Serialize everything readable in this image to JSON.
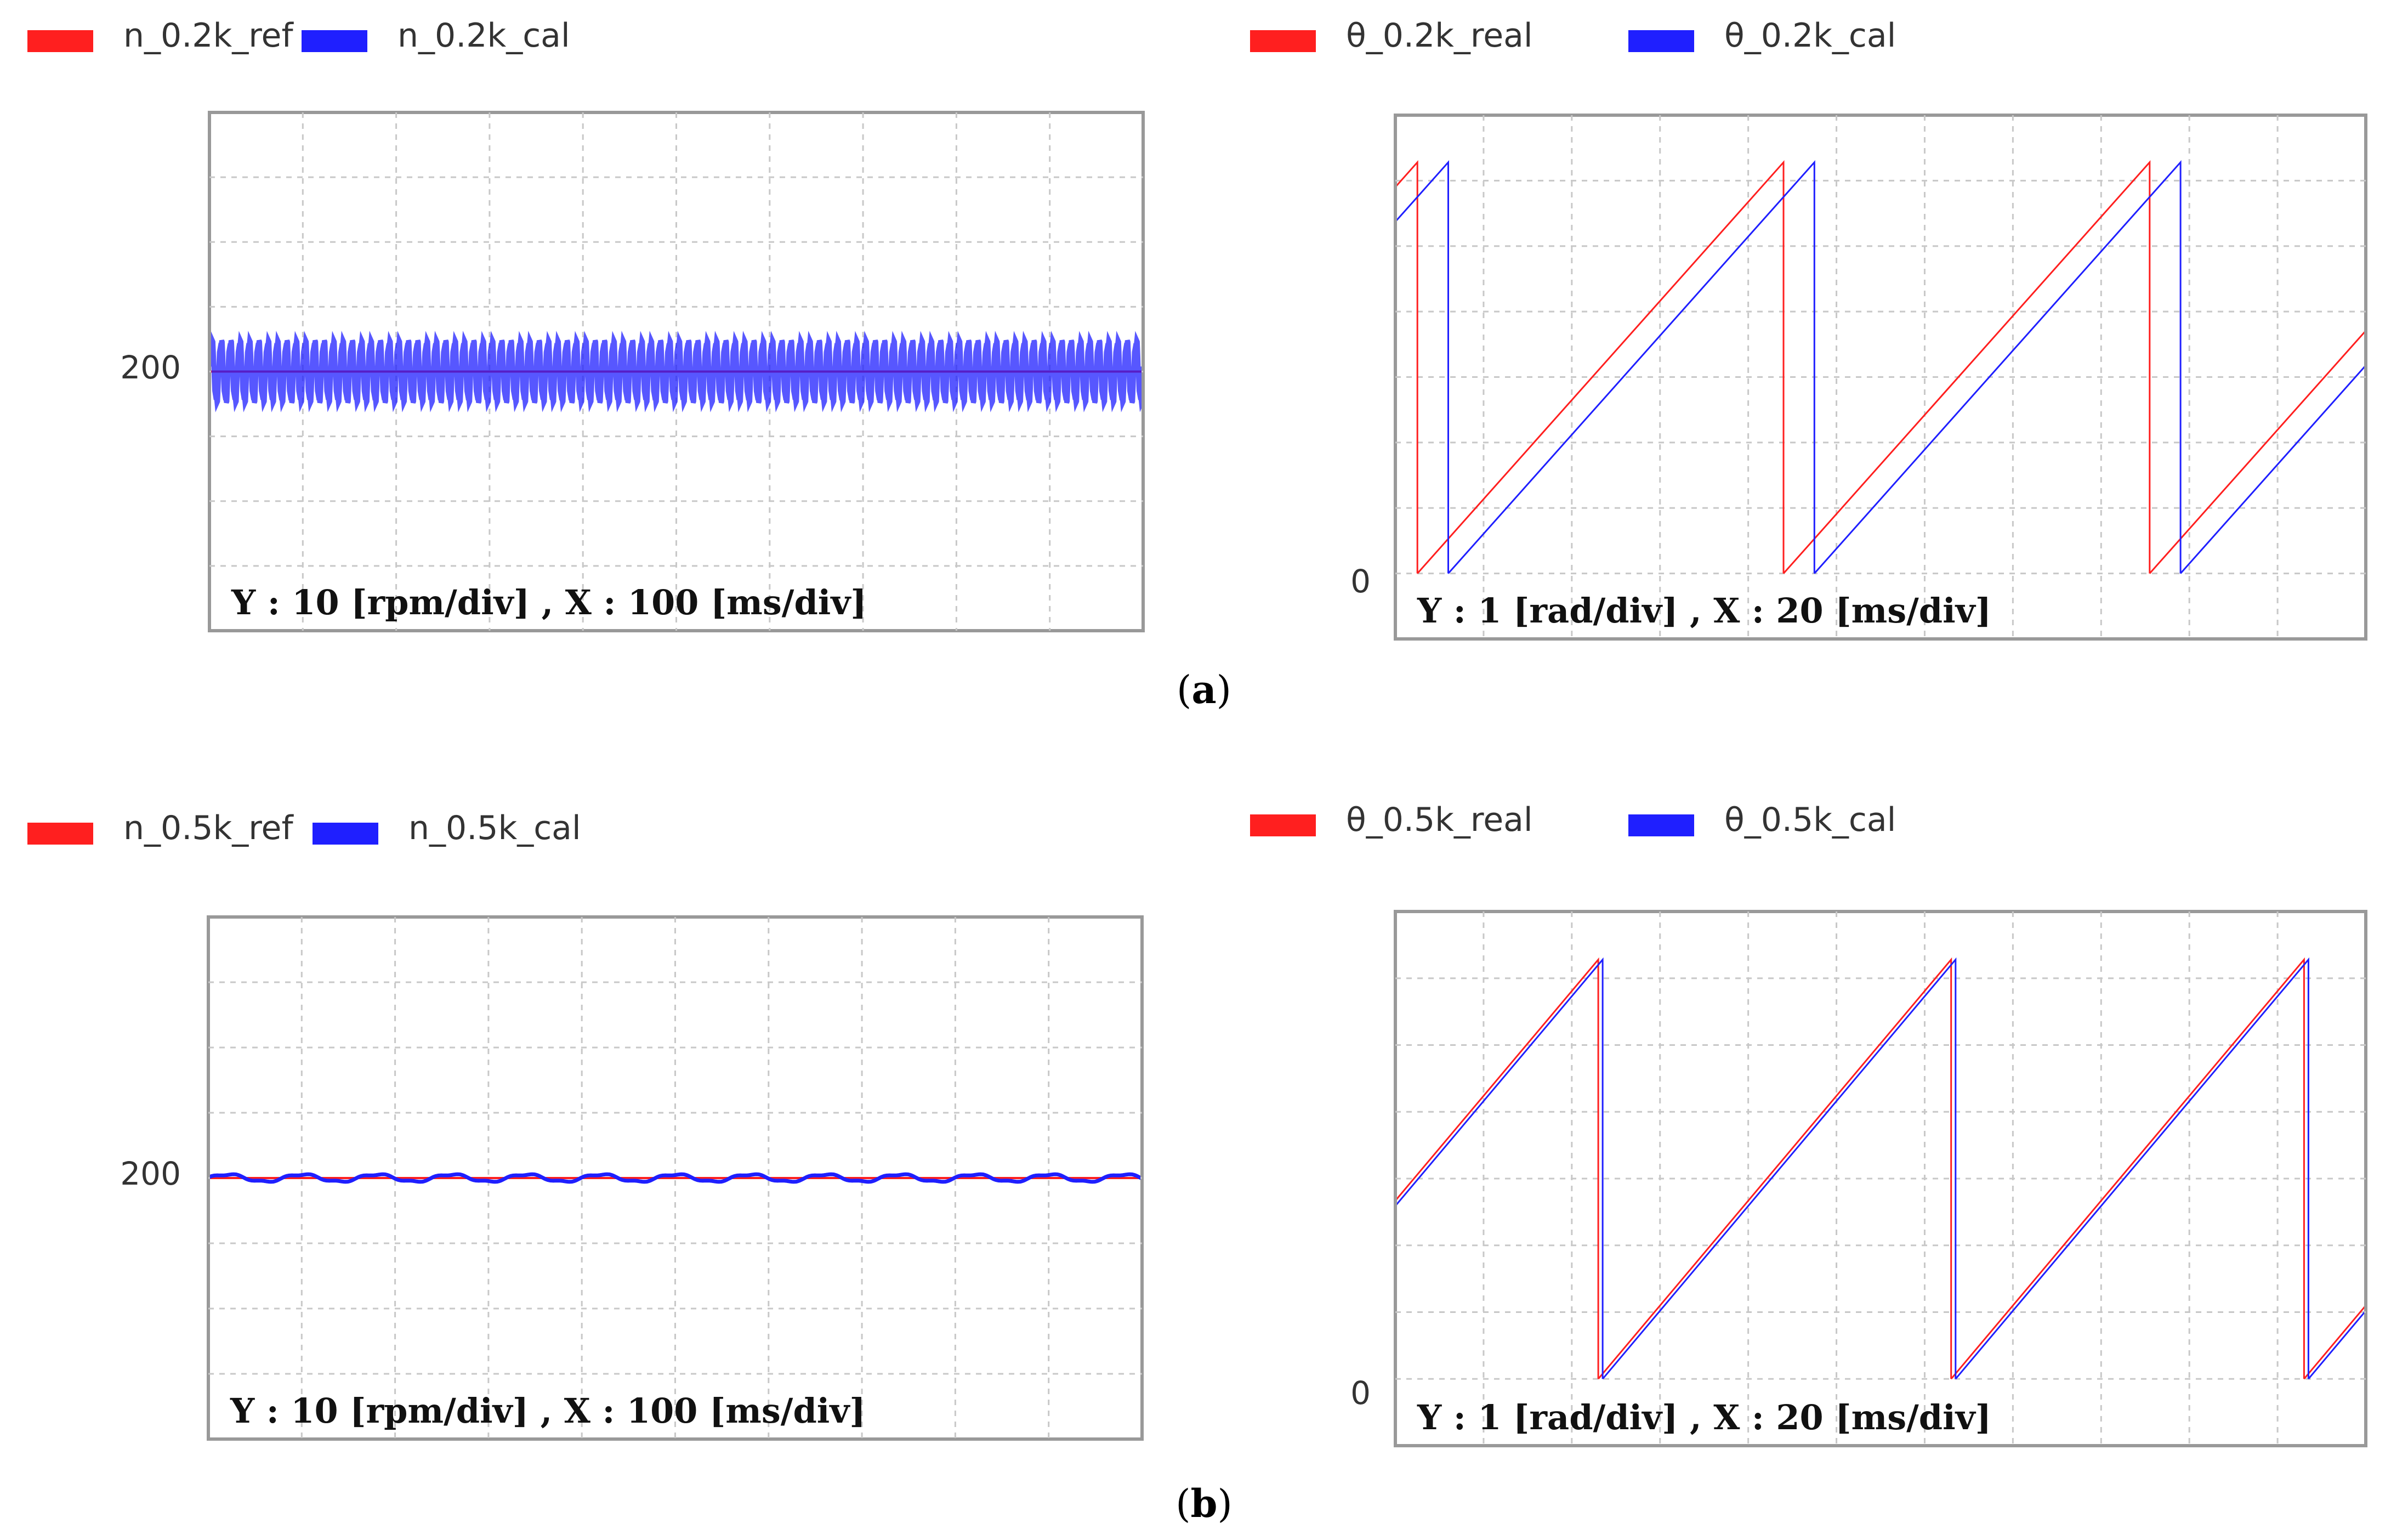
{
  "colors": {
    "ref": "#ff1f1f",
    "cal": "#1f1fff",
    "frame": "#999999",
    "grid": "#c8c8c8"
  },
  "panel_labels": [
    {
      "open": "(",
      "letter": "a",
      "close": ")"
    },
    {
      "open": "(",
      "letter": "b",
      "close": ")"
    }
  ],
  "chart_data": [
    {
      "type": "line",
      "legend": [
        "n_0.2k_ref",
        "n_0.2k_cal"
      ],
      "y_tick_label": "200",
      "scale_text": "Y :  10 [rpm/div] , X : 100 [ms/div]",
      "grid": true,
      "y_divisions": 8,
      "x_divisions": 10,
      "units": {
        "y": "rpm",
        "x": "ms"
      },
      "ylim": [
        160,
        240
      ],
      "xlim": [
        0,
        1000
      ],
      "series": [
        {
          "name": "n_0.2k_ref",
          "shape": "constant",
          "value": 200
        },
        {
          "name": "n_0.2k_cal",
          "shape": "ripple",
          "mean": 200,
          "amplitude": 6,
          "period_ms": 10
        }
      ]
    },
    {
      "type": "line",
      "legend": [
        "θ_0.2k_real",
        "θ_0.2k_cal"
      ],
      "y_tick_label": "0",
      "scale_text": "Y :  1 [rad/div] , X : 20 [ms/div]",
      "grid": true,
      "y_divisions": 8,
      "x_divisions": 11,
      "units": {
        "y": "rad",
        "x": "ms"
      },
      "ylim": [
        -1,
        7
      ],
      "xlim": [
        0,
        220
      ],
      "series": [
        {
          "name": "θ_0.2k_real",
          "shape": "sawtooth",
          "max": 6.28,
          "period_ms": 83,
          "reset_ms": [
            5,
            88,
            171
          ]
        },
        {
          "name": "θ_0.2k_cal",
          "shape": "sawtooth",
          "max": 6.28,
          "period_ms": 83,
          "reset_ms": [
            12,
            95,
            178
          ]
        }
      ]
    },
    {
      "type": "line",
      "legend": [
        "n_0.5k_ref",
        "n_0.5k_cal"
      ],
      "y_tick_label": "200",
      "scale_text": "Y :  10 [rpm/div] , X : 100 [ms/div]",
      "grid": true,
      "y_divisions": 8,
      "x_divisions": 10,
      "units": {
        "y": "rpm",
        "x": "ms"
      },
      "ylim": [
        160,
        240
      ],
      "xlim": [
        0,
        1000
      ],
      "series": [
        {
          "name": "n_0.5k_ref",
          "shape": "constant",
          "value": 200
        },
        {
          "name": "n_0.5k_cal",
          "shape": "ripple",
          "mean": 200,
          "amplitude": 0.7,
          "period_ms": 80
        }
      ]
    },
    {
      "type": "line",
      "legend": [
        "θ_0.5k_real",
        "θ_0.5k_cal"
      ],
      "y_tick_label": "0",
      "scale_text": "Y :  1 [rad/div] , X : 20 [ms/div]",
      "grid": true,
      "y_divisions": 8,
      "x_divisions": 11,
      "units": {
        "y": "rad",
        "x": "ms"
      },
      "ylim": [
        -1,
        7
      ],
      "xlim": [
        0,
        220
      ],
      "series": [
        {
          "name": "θ_0.5k_real",
          "shape": "sawtooth",
          "max": 6.28,
          "period_ms": 80,
          "reset_ms": [
            46,
            126,
            206
          ]
        },
        {
          "name": "θ_0.5k_cal",
          "shape": "sawtooth",
          "max": 6.28,
          "period_ms": 80,
          "reset_ms": [
            47,
            127,
            207
          ]
        }
      ]
    }
  ]
}
